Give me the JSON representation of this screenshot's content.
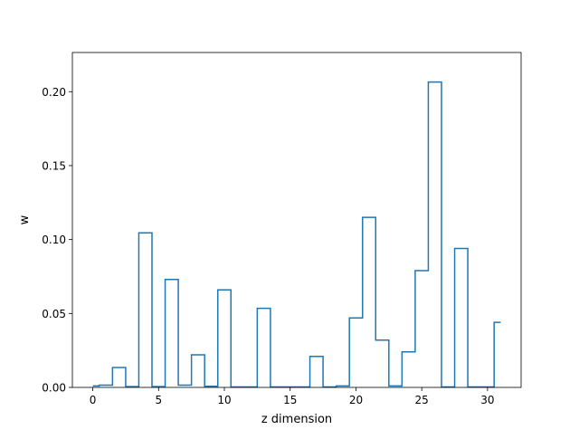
{
  "chart_data": {
    "type": "line",
    "drawstyle": "steps-mid",
    "title": "",
    "xlabel": "z dimension",
    "ylabel": "w",
    "xlim": [
      -1.55,
      32.55
    ],
    "ylim": [
      0,
      0.2265
    ],
    "xticks": [
      0,
      5,
      10,
      15,
      20,
      25,
      30
    ],
    "yticks": [
      0.0,
      0.05,
      0.1,
      0.15,
      0.2
    ],
    "xtick_labels": [
      "0",
      "5",
      "10",
      "15",
      "20",
      "25",
      "30"
    ],
    "ytick_labels": [
      "0.00",
      "0.05",
      "0.10",
      "0.15",
      "0.20"
    ],
    "grid": false,
    "legend": "none",
    "line_color": "#1f77b4",
    "series": [
      {
        "x": [
          0,
          1,
          2,
          3,
          4,
          5,
          6,
          7,
          8,
          9,
          10,
          11,
          12,
          13,
          14,
          15,
          16,
          17,
          18,
          19,
          20,
          21,
          22,
          23,
          24,
          25,
          26,
          27,
          28,
          29,
          30,
          31
        ],
        "values": [
          0.001,
          0.0015,
          0.0135,
          0.0005,
          0.1045,
          0.0005,
          0.073,
          0.0015,
          0.022,
          0.0008,
          0.066,
          0.0003,
          0.0003,
          0.0535,
          0.0003,
          0.0003,
          0.0003,
          0.021,
          0.0003,
          0.001,
          0.047,
          0.115,
          0.032,
          0.001,
          0.024,
          0.079,
          0.2065,
          0.0003,
          0.094,
          0.0003,
          0.0003,
          0.044
        ]
      }
    ]
  }
}
